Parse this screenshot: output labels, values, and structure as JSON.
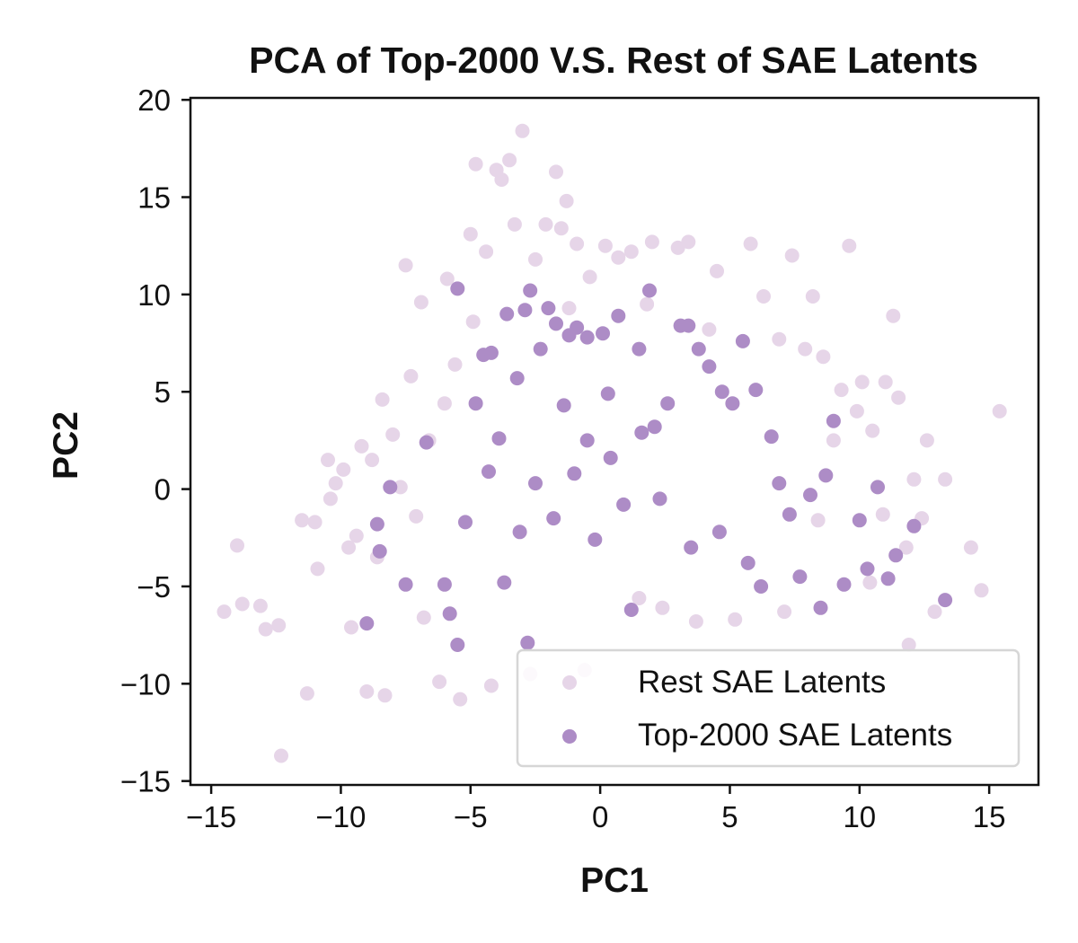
{
  "chart_data": {
    "type": "scatter",
    "title": "PCA of Top-2000 V.S. Rest of SAE Latents",
    "xlabel": "PC1",
    "ylabel": "PC2",
    "xlim": [
      -15.8,
      16.9
    ],
    "ylim": [
      -15.2,
      20.1
    ],
    "xticks": [
      -15,
      -10,
      -5,
      0,
      5,
      10,
      15
    ],
    "yticks": [
      -15,
      -10,
      -5,
      0,
      5,
      10,
      15,
      20
    ],
    "xtick_labels": [
      "−15",
      "−10",
      "−5",
      "0",
      "5",
      "10",
      "15"
    ],
    "ytick_labels": [
      "−15",
      "−10",
      "−5",
      "0",
      "5",
      "10",
      "15",
      "20"
    ],
    "grid": false,
    "legend_position": "lower-right",
    "series": [
      {
        "name": "Rest SAE Latents",
        "color": "#e6d5e8",
        "points": [
          [
            -14.5,
            -6.3
          ],
          [
            -14.0,
            -2.9
          ],
          [
            -13.8,
            -5.9
          ],
          [
            -13.1,
            -6.0
          ],
          [
            -12.9,
            -7.2
          ],
          [
            -12.4,
            -7.0
          ],
          [
            -12.3,
            -13.7
          ],
          [
            -11.5,
            -1.6
          ],
          [
            -11.3,
            -10.5
          ],
          [
            -11.0,
            -1.7
          ],
          [
            -10.9,
            -4.1
          ],
          [
            -10.5,
            1.5
          ],
          [
            -10.4,
            -0.5
          ],
          [
            -10.2,
            0.3
          ],
          [
            -9.9,
            1.0
          ],
          [
            -9.7,
            -3.0
          ],
          [
            -9.4,
            -2.4
          ],
          [
            -9.2,
            2.2
          ],
          [
            -9.0,
            -10.4
          ],
          [
            -8.6,
            -3.5
          ],
          [
            -8.4,
            4.6
          ],
          [
            -8.3,
            -10.6
          ],
          [
            -8.0,
            2.8
          ],
          [
            -7.5,
            11.5
          ],
          [
            -7.3,
            5.8
          ],
          [
            -7.1,
            -1.4
          ],
          [
            -6.9,
            9.6
          ],
          [
            -6.6,
            2.5
          ],
          [
            -6.2,
            -9.9
          ],
          [
            -5.9,
            10.8
          ],
          [
            -5.6,
            6.4
          ],
          [
            -5.4,
            -10.8
          ],
          [
            -5.0,
            13.1
          ],
          [
            -4.8,
            16.7
          ],
          [
            -4.4,
            12.2
          ],
          [
            -4.2,
            -10.1
          ],
          [
            -4.0,
            16.4
          ],
          [
            -3.8,
            15.9
          ],
          [
            -3.5,
            16.9
          ],
          [
            -3.3,
            13.6
          ],
          [
            -3.0,
            18.4
          ],
          [
            -2.7,
            -9.5
          ],
          [
            -2.5,
            11.8
          ],
          [
            -2.1,
            13.6
          ],
          [
            -1.7,
            16.3
          ],
          [
            -1.5,
            13.4
          ],
          [
            -1.3,
            14.8
          ],
          [
            -0.9,
            12.6
          ],
          [
            -0.6,
            -9.3
          ],
          [
            -0.4,
            10.9
          ],
          [
            0.2,
            12.5
          ],
          [
            0.7,
            11.9
          ],
          [
            1.2,
            12.2
          ],
          [
            1.5,
            -5.6
          ],
          [
            2.0,
            12.7
          ],
          [
            2.4,
            -6.1
          ],
          [
            3.0,
            12.4
          ],
          [
            3.4,
            12.7
          ],
          [
            3.7,
            -6.8
          ],
          [
            4.5,
            11.2
          ],
          [
            5.2,
            -6.7
          ],
          [
            5.8,
            12.6
          ],
          [
            6.3,
            9.9
          ],
          [
            7.1,
            -6.3
          ],
          [
            7.4,
            12.0
          ],
          [
            7.9,
            7.2
          ],
          [
            8.2,
            9.9
          ],
          [
            8.6,
            6.8
          ],
          [
            9.0,
            2.5
          ],
          [
            9.3,
            5.1
          ],
          [
            9.6,
            12.5
          ],
          [
            9.9,
            4.0
          ],
          [
            10.1,
            5.5
          ],
          [
            10.5,
            3.0
          ],
          [
            10.9,
            -1.3
          ],
          [
            11.0,
            5.5
          ],
          [
            11.3,
            8.9
          ],
          [
            11.5,
            4.7
          ],
          [
            11.8,
            -3.0
          ],
          [
            11.9,
            -8.0
          ],
          [
            12.1,
            0.5
          ],
          [
            12.4,
            -1.5
          ],
          [
            12.6,
            2.5
          ],
          [
            12.9,
            -6.3
          ],
          [
            13.3,
            0.5
          ],
          [
            14.3,
            -3.0
          ],
          [
            14.7,
            -5.2
          ],
          [
            15.4,
            4.0
          ],
          [
            -8.8,
            1.5
          ],
          [
            -7.7,
            0.1
          ],
          [
            -6.8,
            -6.6
          ],
          [
            -6.0,
            4.4
          ],
          [
            -4.9,
            8.6
          ],
          [
            -1.2,
            9.3
          ],
          [
            1.8,
            9.5
          ],
          [
            4.2,
            8.2
          ],
          [
            6.9,
            7.7
          ],
          [
            8.4,
            -1.6
          ],
          [
            10.4,
            -4.8
          ],
          [
            -9.6,
            -7.1
          ]
        ]
      },
      {
        "name": "Top-2000 SAE Latents",
        "color": "#ad8cc6",
        "points": [
          [
            -9.0,
            -6.9
          ],
          [
            -8.6,
            -1.8
          ],
          [
            -8.5,
            -3.2
          ],
          [
            -8.1,
            0.1
          ],
          [
            -7.5,
            -4.9
          ],
          [
            -6.7,
            2.4
          ],
          [
            -6.0,
            -4.9
          ],
          [
            -5.5,
            10.3
          ],
          [
            -5.2,
            -1.7
          ],
          [
            -4.8,
            4.4
          ],
          [
            -4.5,
            6.9
          ],
          [
            -4.2,
            7.0
          ],
          [
            -3.9,
            2.6
          ],
          [
            -3.6,
            9.0
          ],
          [
            -3.2,
            5.7
          ],
          [
            -2.9,
            9.2
          ],
          [
            -2.7,
            10.2
          ],
          [
            -2.3,
            7.2
          ],
          [
            -2.0,
            9.3
          ],
          [
            -1.7,
            8.5
          ],
          [
            -1.2,
            7.9
          ],
          [
            -0.9,
            8.3
          ],
          [
            -0.5,
            7.8
          ],
          [
            0.1,
            8.0
          ],
          [
            0.7,
            8.9
          ],
          [
            1.5,
            7.2
          ],
          [
            1.9,
            10.2
          ],
          [
            2.6,
            4.4
          ],
          [
            3.1,
            8.4
          ],
          [
            3.4,
            8.4
          ],
          [
            3.8,
            7.2
          ],
          [
            4.2,
            6.3
          ],
          [
            4.7,
            5.0
          ],
          [
            5.1,
            4.4
          ],
          [
            5.5,
            7.6
          ],
          [
            6.0,
            5.1
          ],
          [
            6.2,
            -5.0
          ],
          [
            6.6,
            2.7
          ],
          [
            6.9,
            0.3
          ],
          [
            7.3,
            -1.3
          ],
          [
            7.7,
            -4.5
          ],
          [
            8.1,
            -0.3
          ],
          [
            8.5,
            -6.1
          ],
          [
            8.7,
            0.7
          ],
          [
            9.0,
            3.5
          ],
          [
            9.4,
            -4.9
          ],
          [
            10.0,
            -1.6
          ],
          [
            10.3,
            -4.1
          ],
          [
            10.7,
            0.1
          ],
          [
            11.1,
            -4.6
          ],
          [
            11.4,
            -3.4
          ],
          [
            12.1,
            -1.9
          ],
          [
            13.3,
            -5.7
          ],
          [
            -1.0,
            0.8
          ],
          [
            -0.5,
            2.5
          ],
          [
            0.4,
            1.6
          ],
          [
            0.9,
            -0.8
          ],
          [
            -1.8,
            -1.5
          ],
          [
            -2.5,
            0.3
          ],
          [
            -3.1,
            -2.2
          ],
          [
            1.6,
            2.9
          ],
          [
            2.3,
            -0.5
          ],
          [
            -0.2,
            -2.6
          ],
          [
            -3.7,
            -4.8
          ],
          [
            -5.5,
            -8.0
          ],
          [
            -2.8,
            -7.9
          ],
          [
            1.2,
            -6.2
          ],
          [
            3.5,
            -3.0
          ],
          [
            4.6,
            -2.2
          ],
          [
            5.7,
            -3.8
          ],
          [
            -4.3,
            0.9
          ],
          [
            -1.4,
            4.3
          ],
          [
            0.3,
            4.9
          ],
          [
            2.1,
            3.2
          ],
          [
            -5.8,
            -6.4
          ]
        ]
      }
    ]
  }
}
